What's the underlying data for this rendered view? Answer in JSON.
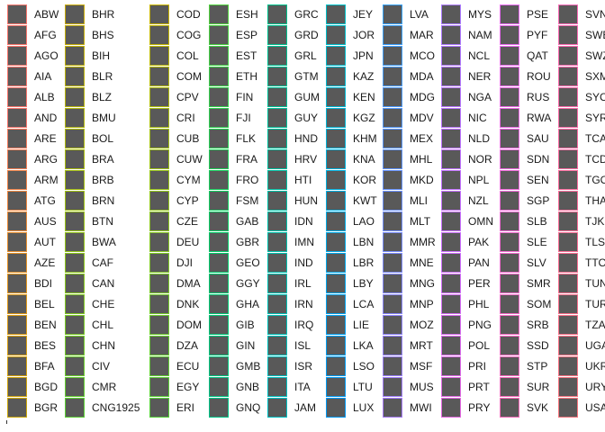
{
  "chart_data": {
    "type": "legend",
    "swatch_fill": "#595959",
    "entries": [
      [
        "ABW",
        "AFG",
        "AGO",
        "AIA",
        "ALB",
        "AND",
        "ARE",
        "ARG",
        "ARM",
        "ATG",
        "AUS",
        "AUT",
        "AZE",
        "BDI",
        "BEL",
        "BEN",
        "BES",
        "BFA",
        "BGD",
        "BGR"
      ],
      [
        "BHR",
        "BHS",
        "BIH",
        "BLR",
        "BLZ",
        "BMU",
        "BOL",
        "BRA",
        "BRB",
        "BRN",
        "BTN",
        "BWA",
        "CAF",
        "CAN",
        "CHE",
        "CHL",
        "CHN",
        "CIV",
        "CMR",
        "CNG1925"
      ],
      [
        "COD",
        "COG",
        "COL",
        "COM",
        "CPV",
        "CRI",
        "CUB",
        "CUW",
        "CYM",
        "CYP",
        "CZE",
        "DEU",
        "DJI",
        "DMA",
        "DNK",
        "DOM",
        "DZA",
        "ECU",
        "EGY",
        "ERI"
      ],
      [
        "ESH",
        "ESP",
        "EST",
        "ETH",
        "FIN",
        "FJI",
        "FLK",
        "FRA",
        "FRO",
        "FSM",
        "GAB",
        "GBR",
        "GEO",
        "GGY",
        "GHA",
        "GIB",
        "GIN",
        "GMB",
        "GNB",
        "GNQ"
      ],
      [
        "GRC",
        "GRD",
        "GRL",
        "GTM",
        "GUM",
        "GUY",
        "HND",
        "HRV",
        "HTI",
        "HUN",
        "IDN",
        "IMN",
        "IND",
        "IRL",
        "IRN",
        "IRQ",
        "ISL",
        "ISR",
        "ITA",
        "JAM"
      ],
      [
        "JEY",
        "JOR",
        "JPN",
        "KAZ",
        "KEN",
        "KGZ",
        "KHM",
        "KNA",
        "KOR",
        "KWT",
        "LAO",
        "LBN",
        "LBR",
        "LBY",
        "LCA",
        "LIE",
        "LKA",
        "LSO",
        "LTU",
        "LUX"
      ],
      [
        "LVA",
        "MAR",
        "MCO",
        "MDA",
        "MDG",
        "MDV",
        "MEX",
        "MHL",
        "MKD",
        "MLI",
        "MLT",
        "MMR",
        "MNE",
        "MNG",
        "MNP",
        "MOZ",
        "MRT",
        "MSF",
        "MUS",
        "MWI"
      ],
      [
        "MYS",
        "NAM",
        "NCL",
        "NER",
        "NGA",
        "NIC",
        "NLD",
        "NOR",
        "NPL",
        "NZL",
        "OMN",
        "PAK",
        "PAN",
        "PER",
        "PHL",
        "PNG",
        "POL",
        "PRI",
        "PRT",
        "PRY"
      ],
      [
        "PSE",
        "PYF",
        "QAT",
        "ROU",
        "RUS",
        "RWA",
        "SAU",
        "SDN",
        "SEN",
        "SGP",
        "SLB",
        "SLE",
        "SLV",
        "SMR",
        "SOM",
        "SRB",
        "SSD",
        "STP",
        "SUR",
        "SVK"
      ],
      [
        "SVN",
        "SWE",
        "SWZ",
        "SXM",
        "SYC",
        "SYR",
        "TCA",
        "TCD",
        "TGO",
        "THA",
        "TJK",
        "TLS",
        "TTO",
        "TUN",
        "TUR",
        "TZA",
        "UGA",
        "UKR",
        "URY",
        "USA"
      ]
    ],
    "column_border_colors": [
      [
        "#f8766d",
        "#f8766d",
        "#f8766d",
        "#f8766d",
        "#f8766d",
        "#f8766d",
        "#f47c5e",
        "#f27f55",
        "#ef8348",
        "#ec8640",
        "#e98a37",
        "#e68e2e",
        "#e49125",
        "#e1951e",
        "#de9818",
        "#db9b13",
        "#d79e0f",
        "#d4a10c",
        "#d0a40a",
        "#cca709"
      ],
      [
        "#c8aa09",
        "#c4ad09",
        "#c0b009",
        "#bbb20a",
        "#b7b40b",
        "#b2b70c",
        "#adb90d",
        "#a8bb0e",
        "#a3bd10",
        "#9ebf12",
        "#98c115",
        "#92c317",
        "#8cc51a",
        "#86c61d",
        "#80c820",
        "#79ca23",
        "#72cb27",
        "#6bcc2b",
        "#63ce2f",
        "#5bcf33"
      ],
      [
        "#c8b400",
        "#c2b603",
        "#bcb806",
        "#b6ba09",
        "#b0bc0c",
        "#aabe0f",
        "#a4c012",
        "#9ec215",
        "#98c318",
        "#92c51b",
        "#8cc61e",
        "#86c721",
        "#80c924",
        "#7aca27",
        "#74cb2a",
        "#6ecc2d",
        "#68cd30",
        "#62ce33",
        "#5ccf36",
        "#56d039"
      ],
      [
        "#4fd03c",
        "#48d040",
        "#41d044",
        "#3ad048",
        "#33d04c",
        "#2cd050",
        "#25cf54",
        "#1ecf58",
        "#17ce5c",
        "#10ce60",
        "#09cd64",
        "#02cc68",
        "#00cb6c",
        "#00ca70",
        "#00c974",
        "#00c878",
        "#00c77c",
        "#00c680",
        "#00c584",
        "#00c488"
      ],
      [
        "#00c08b",
        "#00c08e",
        "#00c091",
        "#00c094",
        "#00c097",
        "#00c09a",
        "#00c09d",
        "#00c0a0",
        "#00c0a3",
        "#00c0a6",
        "#00c0a9",
        "#00c0ac",
        "#00c0af",
        "#00c0b2",
        "#00c0b5",
        "#00c0b8",
        "#00c0bb",
        "#00c0be",
        "#00c0c1",
        "#00c0c4"
      ],
      [
        "#00bfc7",
        "#00bdca",
        "#00bbcd",
        "#00b9d0",
        "#00b7d3",
        "#00b5d6",
        "#00b3d9",
        "#00b1dc",
        "#00afdf",
        "#00ade2",
        "#00abe5",
        "#00a9e8",
        "#00a7eb",
        "#00a5ee",
        "#00a3f1",
        "#00a1f4",
        "#009ff5",
        "#009df6",
        "#009bf7",
        "#0099f8"
      ],
      [
        "#35a2ff",
        "#3ba0ff",
        "#419eff",
        "#479cff",
        "#4d9aff",
        "#5398ff",
        "#5996ff",
        "#5f94ff",
        "#6592ff",
        "#6b90ff",
        "#718eff",
        "#778cff",
        "#7d8aff",
        "#8388ff",
        "#8986ff",
        "#8f84ff",
        "#9582ff",
        "#9b80ff",
        "#a17eff",
        "#a77cff"
      ],
      [
        "#ab7bff",
        "#ae7aff",
        "#b179ff",
        "#b478ff",
        "#b777ff",
        "#ba76ff",
        "#bd75ff",
        "#c074ff",
        "#c373ff",
        "#c672ff",
        "#c971ff",
        "#cc70ff",
        "#cf6ffd",
        "#d26ef9",
        "#d56df5",
        "#d86cf1",
        "#db6bed",
        "#de6ae9",
        "#e169e5",
        "#e468e1"
      ],
      [
        "#e76bf3",
        "#e86bf0",
        "#e96bed",
        "#ea6bea",
        "#eb6be7",
        "#ec6be4",
        "#ed6be1",
        "#ee6bde",
        "#ef6bdb",
        "#f06bd8",
        "#f16bd5",
        "#f26bd2",
        "#f36bcf",
        "#f46bcc",
        "#f56bc9",
        "#f66bc6",
        "#f76bc3",
        "#f86bc0",
        "#f96bbd",
        "#fa6bba"
      ],
      [
        "#fb6bb7",
        "#fb6bb4",
        "#fb6bb1",
        "#fb6bae",
        "#fb6bab",
        "#fb6ca8",
        "#fb6ca5",
        "#fb6ca2",
        "#fb6d9f",
        "#fb6d9c",
        "#fa6e99",
        "#fa6e96",
        "#fa6f93",
        "#fa6f90",
        "#f9708d",
        "#f9718a",
        "#f97287",
        "#f87384",
        "#f87481",
        "#f8767e"
      ]
    ]
  }
}
